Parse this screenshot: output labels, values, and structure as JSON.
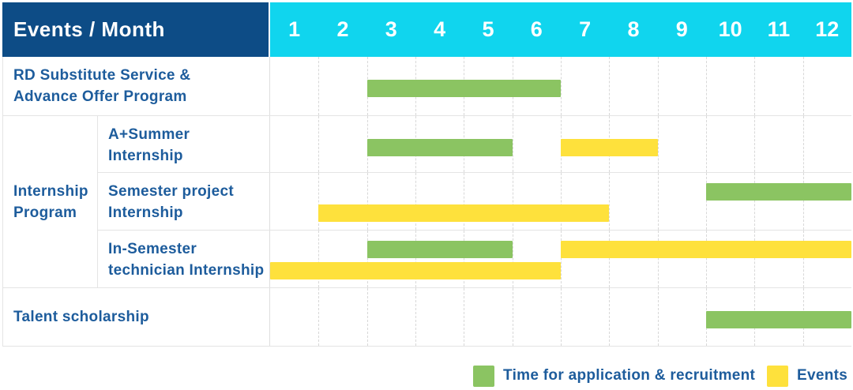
{
  "header": {
    "title": "Events / Month",
    "months": [
      "1",
      "2",
      "3",
      "4",
      "5",
      "6",
      "7",
      "8",
      "9",
      "10",
      "11",
      "12"
    ]
  },
  "group": {
    "label_lines": [
      "Internship",
      "Program"
    ]
  },
  "rows": [
    {
      "id": "rd-substitute",
      "label_lines": [
        "RD Substitute Service &",
        "Advance Offer Program"
      ],
      "bars": [
        {
          "color": "green",
          "start": 3,
          "end": 6,
          "line": "single"
        }
      ]
    },
    {
      "id": "a-plus-summer",
      "label_lines": [
        "A+Summer",
        "Internship"
      ],
      "bars": [
        {
          "color": "green",
          "start": 3,
          "end": 5,
          "line": "single"
        },
        {
          "color": "yellow",
          "start": 7,
          "end": 8,
          "line": "single"
        }
      ]
    },
    {
      "id": "semester-project",
      "label_lines": [
        "Semester project",
        "Internship"
      ],
      "bars": [
        {
          "color": "green",
          "start": 10,
          "end": 12,
          "line": "top"
        },
        {
          "color": "yellow",
          "start": 2,
          "end": 7,
          "line": "bottom"
        }
      ]
    },
    {
      "id": "in-semester-technician",
      "label_lines": [
        "In-Semester",
        "technician Internship"
      ],
      "bars": [
        {
          "color": "green",
          "start": 3,
          "end": 5,
          "line": "top"
        },
        {
          "color": "yellow",
          "start": 7,
          "end": 12,
          "line": "top"
        },
        {
          "color": "yellow",
          "start": 1,
          "end": 6,
          "line": "bottom"
        }
      ]
    },
    {
      "id": "talent-scholarship",
      "label_lines": [
        "Talent scholarship"
      ],
      "bars": [
        {
          "color": "green",
          "start": 10,
          "end": 12,
          "line": "single"
        }
      ]
    }
  ],
  "legend": [
    {
      "color": "green",
      "label": "Time for application & recruitment"
    },
    {
      "color": "yellow",
      "label": "Events"
    }
  ],
  "colors": {
    "header_navy": "#0d4c86",
    "header_cyan": "#10d5ee",
    "bar_green": "#8bc462",
    "bar_yellow": "#fee13c",
    "label_blue": "#1d5c9c"
  },
  "chart_data": {
    "type": "gantt",
    "title": "Events / Month",
    "x_axis": {
      "label": "Month",
      "ticks": [
        1,
        2,
        3,
        4,
        5,
        6,
        7,
        8,
        9,
        10,
        11,
        12
      ],
      "range": [
        1,
        12
      ]
    },
    "grid": "dashed vertical month separators",
    "legend_position": "bottom-right",
    "series_meaning": {
      "green": "Time for application & recruitment",
      "yellow": "Events"
    },
    "tasks": [
      {
        "group": null,
        "name": "RD Substitute Service & Advance Offer Program",
        "application_recruitment_months": [
          [
            3,
            6
          ]
        ],
        "events_months": []
      },
      {
        "group": "Internship Program",
        "name": "A+Summer Internship",
        "application_recruitment_months": [
          [
            3,
            5
          ]
        ],
        "events_months": [
          [
            7,
            8
          ]
        ]
      },
      {
        "group": "Internship Program",
        "name": "Semester project Internship",
        "application_recruitment_months": [
          [
            10,
            12
          ]
        ],
        "events_months": [
          [
            2,
            7
          ]
        ]
      },
      {
        "group": "Internship Program",
        "name": "In-Semester technician Internship",
        "application_recruitment_months": [
          [
            3,
            5
          ]
        ],
        "events_months": [
          [
            7,
            12
          ],
          [
            1,
            6
          ]
        ]
      },
      {
        "group": null,
        "name": "Talent scholarship",
        "application_recruitment_months": [
          [
            10,
            12
          ]
        ],
        "events_months": []
      }
    ]
  }
}
